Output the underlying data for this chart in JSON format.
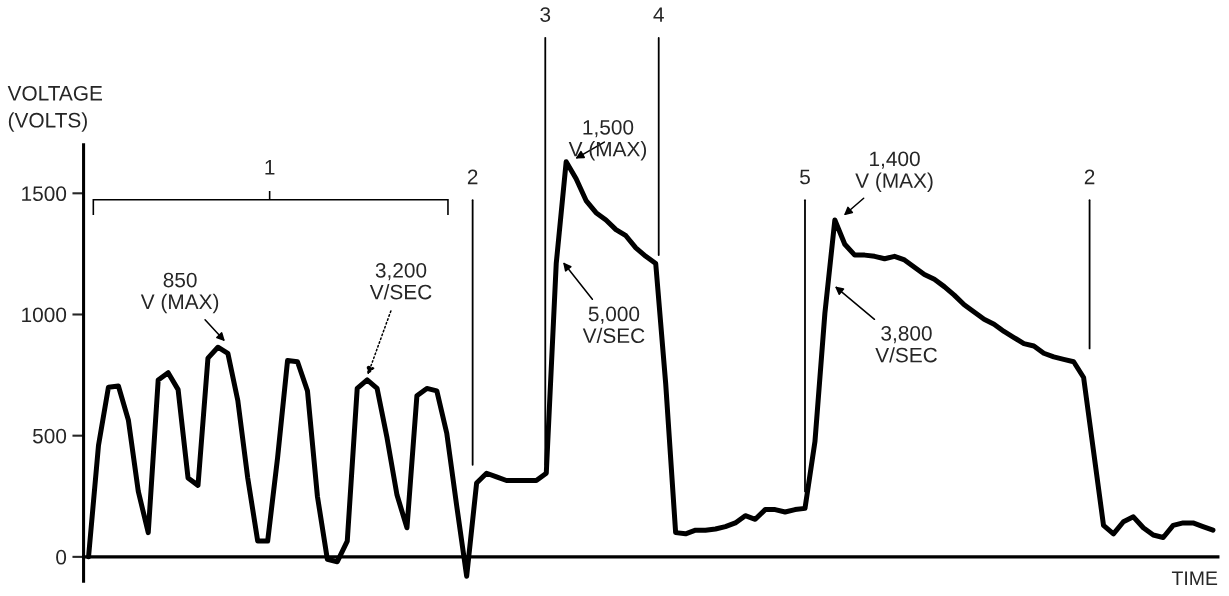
{
  "chart_data": {
    "type": "line",
    "ylabel": "VOLTAGE\n(VOLTS)",
    "categories": [
      null,
      null,
      null,
      null,
      null,
      null,
      null,
      null,
      null,
      null,
      null,
      null,
      null,
      null,
      null,
      null,
      null,
      null,
      null,
      null,
      null,
      null,
      null,
      null,
      null,
      null,
      null,
      null,
      null,
      null,
      null,
      null,
      null,
      null,
      null,
      null,
      null,
      null,
      null,
      null,
      null,
      null,
      null,
      null,
      null,
      null,
      null,
      null,
      null,
      null,
      null,
      null,
      null,
      null,
      null,
      null,
      null,
      null,
      null,
      null,
      null,
      null,
      null,
      null,
      null,
      null,
      null,
      null,
      null,
      null,
      null,
      null,
      null,
      null,
      null,
      null,
      null,
      null,
      null,
      null,
      null,
      null,
      null,
      null,
      null,
      null,
      null,
      null,
      null,
      null,
      null,
      null,
      null,
      null,
      null,
      null,
      null,
      null,
      null,
      null,
      null,
      null,
      null,
      null,
      null,
      null,
      null,
      null,
      null,
      null,
      null,
      null,
      null,
      null
    ],
    "series": [
      {
        "color": "#000000",
        "values": [
          0,
          460,
          700,
          705,
          565,
          270,
          100,
          730,
          760,
          690,
          325,
          295,
          820,
          865,
          840,
          645,
          325,
          65,
          65,
          410,
          810,
          805,
          685,
          250,
          -10,
          -20,
          65,
          695,
          730,
          695,
          490,
          255,
          120,
          665,
          695,
          685,
          510,
          210,
          -80,
          305,
          345,
          330,
          315,
          315,
          315,
          315,
          345,
          1210,
          1630,
          1560,
          1470,
          1420,
          1390,
          1350,
          1325,
          1275,
          1240,
          1210,
          715,
          100,
          95,
          110,
          110,
          115,
          125,
          140,
          170,
          155,
          195,
          195,
          185,
          195,
          200,
          475,
          1005,
          1390,
          1290,
          1245,
          1245,
          1240,
          1230,
          1240,
          1225,
          1195,
          1165,
          1145,
          1115,
          1080,
          1040,
          1010,
          980,
          960,
          930,
          905,
          880,
          870,
          840,
          825,
          815,
          805,
          740,
          435,
          130,
          95,
          145,
          165,
          120,
          90,
          80,
          130,
          140,
          140,
          125,
          110
        ]
      }
    ],
    "ylim": [
      -100,
      1700
    ],
    "yticks": [
      0,
      500,
      1000,
      1500
    ],
    "tick_labels": "y",
    "annotations": [
      "1",
      "2",
      "3",
      "4",
      "5",
      "2",
      "850\nV (MAX)",
      "3,200\nV/SEC",
      "1,500\nV (MAX)",
      "5,000\nV/SEC",
      "1,400\nV (MAX)",
      "3,800\nV/SEC",
      "TIME"
    ]
  }
}
